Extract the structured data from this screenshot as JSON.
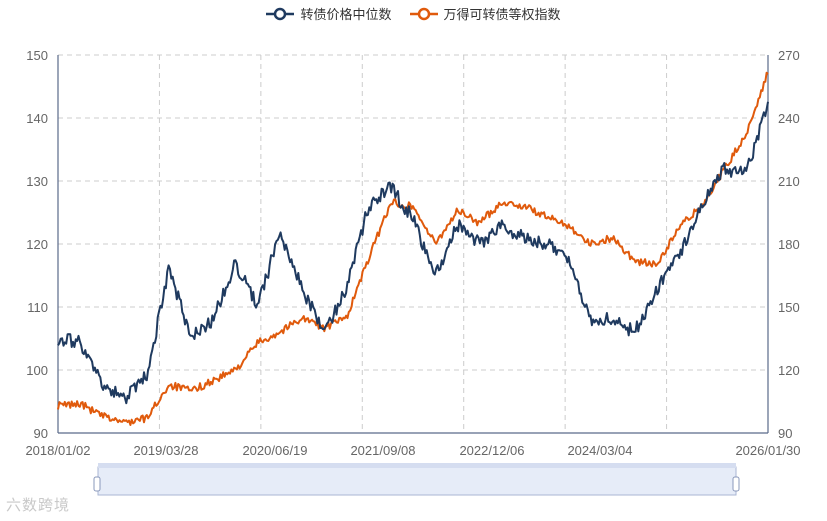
{
  "legend": {
    "series_1": "转债价格中位数",
    "series_2": "万得可转债等权指数"
  },
  "watermark": "六数跨境",
  "colors": {
    "series_1": "#1f3a5f",
    "series_2": "#e05a0c",
    "grid": "#cccccc",
    "axis": "#5a6a8a",
    "slider_fill": "#e6ecf8",
    "slider_border": "#aab6d3"
  },
  "chart_data": {
    "type": "line",
    "title": "",
    "xlabel": "",
    "ylabel_left": "",
    "ylabel_right": "",
    "x_ticks": [
      "2018/01/02",
      "2019/03/28",
      "2020/06/19",
      "2021/09/08",
      "2022/12/06",
      "2024/03/04",
      "2026/01/30"
    ],
    "y_left": {
      "min": 90,
      "max": 150,
      "ticks": [
        90,
        100,
        110,
        120,
        130,
        140,
        150
      ]
    },
    "y_right": {
      "min": 90,
      "max": 270,
      "ticks": [
        90,
        120,
        150,
        180,
        210,
        240,
        270
      ]
    },
    "grid": true,
    "legend_position": "top-center",
    "x": [
      "2018/01",
      "2018/04",
      "2018/07",
      "2018/10",
      "2019/01",
      "2019/04",
      "2019/07",
      "2019/10",
      "2020/01",
      "2020/04",
      "2020/07",
      "2020/10",
      "2021/01",
      "2021/04",
      "2021/07",
      "2021/10",
      "2022/01",
      "2022/04",
      "2022/07",
      "2022/10",
      "2023/01",
      "2023/04",
      "2023/07",
      "2023/10",
      "2024/01",
      "2024/04",
      "2024/07",
      "2024/10",
      "2025/01",
      "2025/04",
      "2025/07",
      "2025/10",
      "2026/01"
    ],
    "series": [
      {
        "name": "转债价格中位数",
        "axis": "left",
        "values": [
          105,
          104.5,
          97.5,
          95.5,
          99,
          116,
          105,
          108,
          117,
          110,
          122,
          113,
          106,
          113,
          126,
          129,
          124,
          115,
          123,
          120,
          123,
          121,
          120,
          118,
          108,
          108,
          106,
          113,
          118,
          126,
          132,
          131,
          142
        ]
      },
      {
        "name": "万得可转债等权指数",
        "axis": "right",
        "values": [
          103,
          104,
          98,
          95,
          97,
          113,
          110,
          115,
          120,
          133,
          138,
          145,
          140,
          145,
          173,
          200,
          198,
          180,
          196,
          190,
          200,
          198,
          193,
          189,
          180,
          183,
          172,
          170,
          188,
          198,
          215,
          232,
          262
        ]
      }
    ]
  },
  "zoom_slider": {
    "start": 0,
    "end": 1
  }
}
